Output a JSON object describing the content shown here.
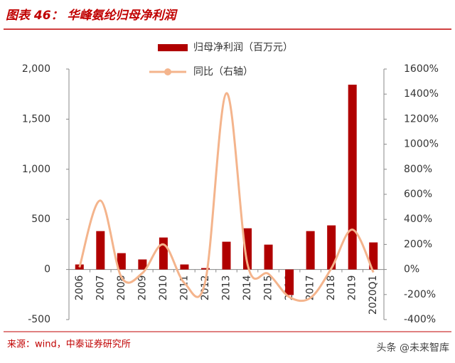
{
  "chart_data": {
    "type": "bar-line",
    "title": "图表 46：  华峰氨纶归母净利润",
    "categories": [
      "2006",
      "2007",
      "2008",
      "2009",
      "2010",
      "2011",
      "2012",
      "2013",
      "2014",
      "2015",
      "2016",
      "2017",
      "2018",
      "2019",
      "2020Q1"
    ],
    "series": [
      {
        "name": "归母净利润（百万元）",
        "type": "bar",
        "color": "#b00000",
        "values": [
          50,
          383,
          163,
          100,
          319,
          50,
          14,
          277,
          411,
          248,
          -255,
          383,
          440,
          1844,
          270
        ]
      },
      {
        "name": "同比（右轴）",
        "type": "line",
        "axis": "y2",
        "color": "#f4b48c",
        "values": [
          17,
          550,
          -62,
          -28,
          200,
          -108,
          -90,
          1407,
          45,
          -35,
          -220,
          -227,
          10,
          318,
          -23
        ]
      }
    ],
    "ylim": [
      -500,
      2000
    ],
    "yticks": [
      -500,
      0,
      500,
      {
        "value": 1000,
        "label": "1,000"
      },
      {
        "value": 1500,
        "label": "1,500"
      },
      {
        "value": 2000,
        "label": "2,000"
      }
    ],
    "y2lim": [
      -400,
      1600
    ],
    "y2ticks": [
      {
        "value": -400,
        "label": "-400%"
      },
      {
        "value": -200,
        "label": "-200%"
      },
      {
        "value": 0,
        "label": "0%"
      },
      {
        "value": 200,
        "label": "200%"
      },
      {
        "value": 400,
        "label": "400%"
      },
      {
        "value": 600,
        "label": "600%"
      },
      {
        "value": 800,
        "label": "800%"
      },
      {
        "value": 1000,
        "label": "1000%"
      },
      {
        "value": 1200,
        "label": "1200%"
      },
      {
        "value": 1400,
        "label": "1400%"
      },
      {
        "value": 1600,
        "label": "1600%"
      }
    ],
    "grid": false,
    "legend": "top",
    "source": "来源：wind，中泰证券研究所",
    "watermark": "头条 @未来智库"
  }
}
